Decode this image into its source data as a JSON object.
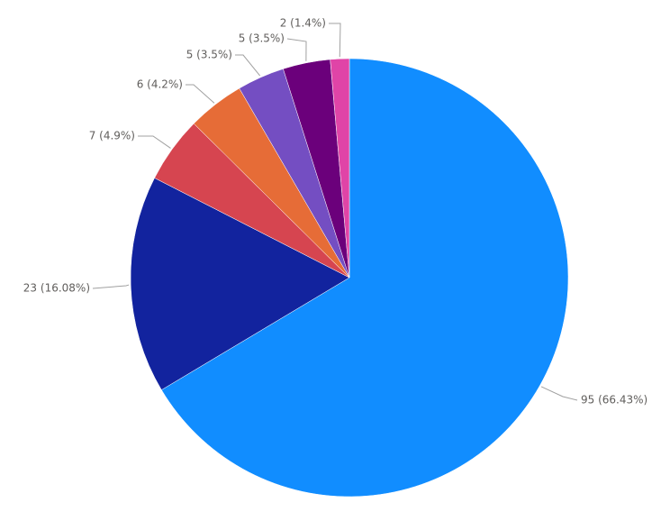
{
  "chart_data": {
    "type": "pie",
    "values": [
      95,
      23,
      7,
      6,
      5,
      5,
      2
    ],
    "value_labels": [
      "95 (66.43%)",
      "23 (16.08%)",
      "7 (4.9%)",
      "6 (4.2%)",
      "5 (3.5%)",
      "5 (3.5%)",
      "2 (1.4%)"
    ],
    "colors": [
      "#118dff",
      "#12239e",
      "#d64550",
      "#e66c37",
      "#744ec2",
      "#6b007b",
      "#e044a7"
    ]
  }
}
